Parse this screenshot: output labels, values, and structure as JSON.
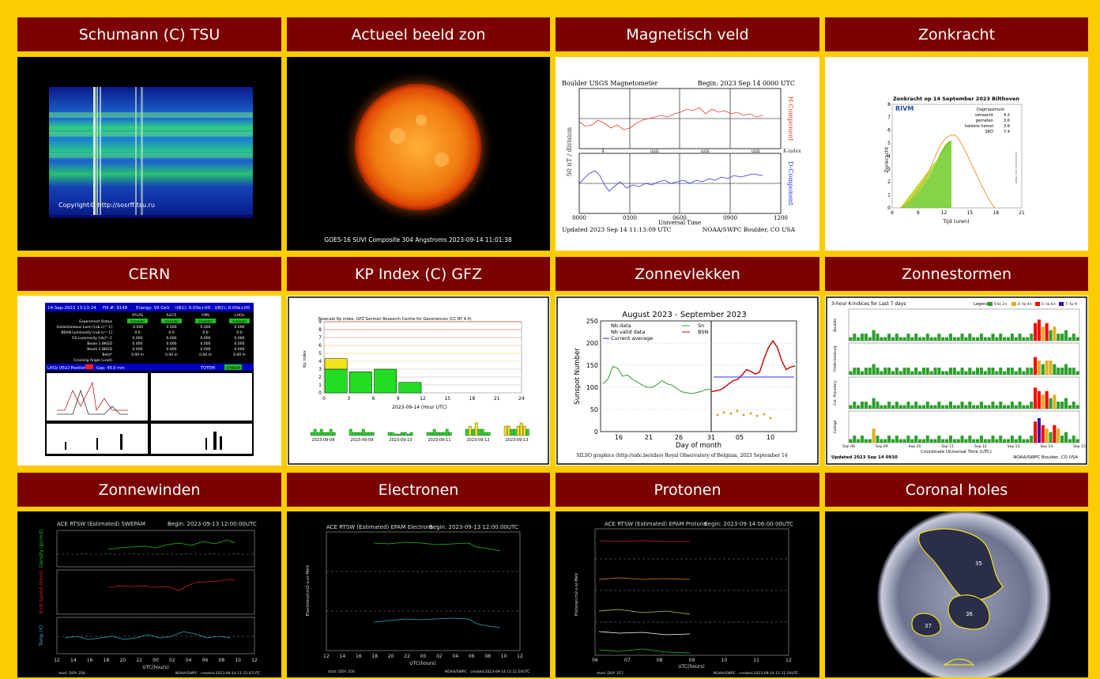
{
  "tiles": [
    {
      "id": "schumann",
      "title": "Schumann (C) TSU"
    },
    {
      "id": "sun",
      "title": "Actueel beeld zon"
    },
    {
      "id": "mag",
      "title": "Magnetisch veld"
    },
    {
      "id": "zonkracht",
      "title": "Zonkracht"
    },
    {
      "id": "cern",
      "title": "CERN"
    },
    {
      "id": "kp",
      "title": "KP Index (C) GFZ"
    },
    {
      "id": "zonnevlekken",
      "title": "Zonnevlekken"
    },
    {
      "id": "zonnestormen",
      "title": "Zonnestormen"
    },
    {
      "id": "zonnewinden",
      "title": "Zonnewinden"
    },
    {
      "id": "electronen",
      "title": "Electronen"
    },
    {
      "id": "protonen",
      "title": "Protonen"
    },
    {
      "id": "coronal",
      "title": "Coronal holes"
    }
  ],
  "schumann": {
    "copyright": "Copyright© http://sosrff.tsu.ru"
  },
  "sun": {
    "caption": "GOES-16 SUVI Composite 304 Angstroms 2023-09-14 11:01:38"
  },
  "mag": {
    "title": "Boulder USGS Magnetometer",
    "begin": "Begin:  2023 Sep 14 0000 UTC",
    "ylabel": "50 nT / division",
    "h": "H-Component",
    "d": "D-Component",
    "kindex": [
      "4",
      "unk",
      "unk",
      "unk",
      "K-index"
    ],
    "ticks": [
      "0000",
      "0300",
      "0600",
      "0900",
      "1200"
    ],
    "xlabel": "Universal Time",
    "updated": "Updated 2023 Sep 14 11:13:09 UTC",
    "source": "NOAA/SWPC Boulder, CO USA"
  },
  "zonkracht": {
    "title": "Zonkracht op 14 September 2023 Bilthoven",
    "brand": "RIVM",
    "legend_head": "Dagmaximum",
    "legend": [
      [
        "verwacht",
        "4.2"
      ],
      [
        "gemeten",
        "3.6"
      ],
      [
        "heldere hemel",
        "3.6"
      ],
      [
        "SRD",
        "7.4"
      ]
    ],
    "ylabel": "Zonkracht",
    "xlabel": "Tijd (uren)",
    "yticks": [
      "0",
      "1",
      "2",
      "3",
      "4",
      "5",
      "6",
      "7",
      "8"
    ],
    "xticks": [
      "6",
      "9",
      "12",
      "15",
      "18",
      "21"
    ],
    "url": "www.rivm.nl/zonkracht"
  },
  "cern": {
    "date": "14-Sep-2023 13:13:24",
    "fill": "Fill #: 9148",
    "energy": "Energy:  59 GeV",
    "ib1": "I(B1): 0.00e+00",
    "ib2": "I(B2): 0.00e+00",
    "cols": [
      "ATLAS",
      "ALICE",
      "CMS",
      "LHCb"
    ],
    "rows": [
      {
        "label": "Experiment Status",
        "vals": [
          "STANDBY",
          "STANDBY",
          "STANDBY",
          "STANDBY"
        ]
      },
      {
        "label": "Instantaneous Lumi [(ub.s)^-1]",
        "vals": [
          "-0.000",
          "0.000",
          "0.000",
          "0.000"
        ]
      },
      {
        "label": "BRAN Luminosity [(ub.s)^-1]",
        "vals": [
          "0.0",
          "0.0",
          "0.0",
          "0.0"
        ]
      },
      {
        "label": "Fill Luminosity [nb]^-1",
        "vals": [
          "0.000",
          "0.000",
          "0.000",
          "0.000"
        ]
      },
      {
        "label": "Beam 1 BKGD",
        "vals": [
          "0.000",
          "0.000",
          "0.000",
          "0.000"
        ]
      },
      {
        "label": "Beam 2 BKGD",
        "vals": [
          "0.000",
          "0.000",
          "0.000",
          "0.000"
        ]
      },
      {
        "label": "Beta*",
        "vals": [
          "0.00 m",
          "0.00 m",
          "0.00 m",
          "0.00 m"
        ]
      },
      {
        "label": "Crossing Angle (urad)",
        "vals": [
          "",
          "",
          "",
          ""
        ]
      }
    ],
    "velo": "LHCb VELO Position",
    "gap": "Gap: 49.0 mm",
    "totem": "TOTEM:",
    "totem_status": "STANDBY"
  },
  "kp": {
    "title": "Nowcast Kp index, GFZ German Research Centre for Geosciences (CC BY 4.0)",
    "ylabel": "Kp index",
    "xlabel": "2023-09-14 (Hour UTC)",
    "yticks": [
      "0",
      "1",
      "2",
      "3",
      "4",
      "5",
      "6",
      "7",
      "8",
      "9"
    ],
    "xticks": [
      "0",
      "3",
      "6",
      "9",
      "12",
      "15",
      "18",
      "21",
      "24"
    ],
    "bars": [
      {
        "h": 0,
        "v": 4.33,
        "split": 3.0
      },
      {
        "h": 3,
        "v": 2.67
      },
      {
        "h": 6,
        "v": 3.0
      },
      {
        "h": 9,
        "v": 1.33
      }
    ],
    "days": [
      "2023-09-08",
      "2023-09-09",
      "2023-09-10",
      "2023-09-11",
      "2023-09-12",
      "2023-09-13"
    ],
    "day_values": [
      [
        1,
        2,
        1,
        2,
        1,
        1,
        2,
        1
      ],
      [
        2,
        1,
        1,
        1,
        2,
        1,
        1,
        1
      ],
      [
        1,
        1,
        0.5,
        0.5,
        1,
        1,
        0.5,
        1
      ],
      [
        1,
        1,
        2,
        1,
        1,
        1,
        2,
        1
      ],
      [
        2,
        3,
        2,
        4,
        2,
        2,
        1,
        1
      ],
      [
        3,
        3,
        2,
        2,
        3,
        4,
        3,
        2
      ]
    ]
  },
  "zonnevlekken": {
    "title": "August 2023 - September 2023",
    "ylabel": "Sunspot Number",
    "xlabel": "Day of month",
    "yticks": [
      "0",
      "50",
      "100",
      "150",
      "200",
      "250"
    ],
    "xticks": [
      "16",
      "21",
      "26",
      "31",
      "05",
      "10"
    ],
    "legend": [
      "Nb data",
      "Nb valid data",
      "Current average",
      "Sn",
      "BSN"
    ],
    "footer": "SILSO graphics (http://sidc.be/silso) Royal Observatory of Belgium, 2023 September 14",
    "green": [
      108,
      118,
      147,
      143,
      125,
      128,
      118,
      112,
      105,
      100,
      100,
      106,
      115,
      108,
      105,
      98,
      90,
      88,
      86,
      88,
      91,
      95,
      95
    ],
    "red": [
      90,
      92,
      94,
      100,
      108,
      115,
      118,
      128,
      140,
      136,
      130,
      135,
      165,
      190,
      205,
      190,
      160,
      140,
      146,
      148
    ]
  },
  "zonnestormen": {
    "title": "3-hour K-indices for Last 7 days",
    "legend_label": "Legend:",
    "legend": [
      "0 to 3+",
      "4- to 4+",
      "5- to 6+",
      "7- to 9"
    ],
    "stations": [
      "Boulder",
      "Fredericksburg",
      "Col. Planetary",
      "College"
    ],
    "days": [
      "Sep 08",
      "Sep 09",
      "Sep 10",
      "Sep 11",
      "Sep 12",
      "Sep 13",
      "Sep 14",
      "Sep 15"
    ],
    "xlabel": "Coordinate Universal Time (UTC)",
    "updated": "Updated 2023 Sep 14 0930",
    "source": "NOAA/SWPC Boulder, CO USA"
  },
  "zonnewinden": {
    "title": "ACE RTSW (Estimated) SWEPAM",
    "begin": "Begin: 2023-09-13 12:00:00UTC",
    "panels": [
      "Density (p/cm3)",
      "Bulk Speed (km/s)",
      "Temp (K)"
    ],
    "xticks": [
      "12",
      "14",
      "16",
      "18",
      "20",
      "22",
      "00",
      "02",
      "04",
      "06",
      "08",
      "10",
      "12"
    ],
    "xlabel": "UTC(hours)",
    "start": "start: DOY: 256",
    "noaa": "NOAA/SWPC",
    "created": "created:2023-09-14 11:12:07UTC"
  },
  "electronen": {
    "title": "ACE RTSW (Estimated) EPAM Electrons",
    "begin": "Begin: 2023-09-13 12:00:00UTC",
    "ylabel": "Electrons/cm2-s-sr-MeV",
    "xticks": [
      "12",
      "14",
      "16",
      "18",
      "20",
      "22",
      "00",
      "02",
      "04",
      "06",
      "08",
      "10",
      "12"
    ],
    "xlabel": "UTC(hours)",
    "start": "start: DOY: 256",
    "noaa": "NOAA/SWPC",
    "created": "created:2023-09-14 11:11:50UTC"
  },
  "protonen": {
    "title": "ACE RTSW (Estimated) EPAM Protons",
    "begin": "Begin: 2023-09-14 06:00:00UTC",
    "ylabel": "Protons/cm2-s-sr-MeV",
    "xticks": [
      "06",
      "07",
      "08",
      "09",
      "10",
      "11",
      "12"
    ],
    "xlabel": "UTC(hours)",
    "start": "start: DOY: 257",
    "noaa": "NOAA/SWPC",
    "created": "created:2023-09-14 11:11:50UTC"
  },
  "coronal": {
    "labels": [
      "35",
      "36",
      "37"
    ]
  },
  "colors": {
    "header_bg": "#7b0000",
    "page_bg": "#fccc00"
  }
}
